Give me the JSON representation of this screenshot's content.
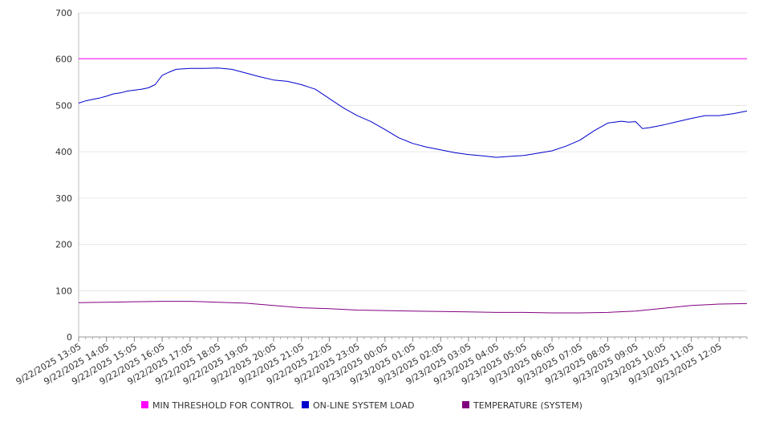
{
  "chart_data": {
    "type": "line",
    "title": "",
    "xlabel": "",
    "ylabel": "",
    "ylim": [
      0,
      700
    ],
    "yticks": [
      0,
      100,
      200,
      300,
      400,
      500,
      600,
      700
    ],
    "grid": true,
    "legend_position": "bottom",
    "x_tick_labels": [
      "9/22/2025 13:05",
      "9/22/2025 14:05",
      "9/22/2025 15:05",
      "9/22/2025 16:05",
      "9/22/2025 17:05",
      "9/22/2025 18:05",
      "9/22/2025 19:05",
      "9/22/2025 20:05",
      "9/22/2025 21:05",
      "9/22/2025 22:05",
      "9/22/2025 23:05",
      "9/23/2025 00:05",
      "9/23/2025 01:05",
      "9/23/2025 02:05",
      "9/23/2025 03:05",
      "9/23/2025 04:05",
      "9/23/2025 05:05",
      "9/23/2025 06:05",
      "9/23/2025 07:05",
      "9/23/2025 08:05",
      "9/23/2025 09:05",
      "9/23/2025 10:05",
      "9/23/2025 11:05",
      "9/23/2025 12:05"
    ],
    "x_range": [
      "9/22/2025 13:05",
      "9/23/2025 13:05"
    ],
    "series": [
      {
        "name": "MIN THRESHOLD FOR CONTROL",
        "color": "#ff00ff",
        "x": [
          "9/22/2025 13:05",
          "9/23/2025 13:05"
        ],
        "values": [
          601,
          601
        ]
      },
      {
        "name": "ON-LINE SYSTEM LOAD",
        "color": "#0000cc",
        "x": [
          "9/22/2025 13:05",
          "9/22/2025 13:20",
          "9/22/2025 13:35",
          "9/22/2025 13:50",
          "9/22/2025 14:05",
          "9/22/2025 14:20",
          "9/22/2025 14:35",
          "9/22/2025 14:50",
          "9/22/2025 15:05",
          "9/22/2025 15:20",
          "9/22/2025 15:35",
          "9/22/2025 15:50",
          "9/22/2025 16:05",
          "9/22/2025 16:20",
          "9/22/2025 16:35",
          "9/22/2025 17:05",
          "9/22/2025 17:35",
          "9/22/2025 18:05",
          "9/22/2025 18:35",
          "9/22/2025 19:05",
          "9/22/2025 19:35",
          "9/22/2025 20:05",
          "9/22/2025 20:35",
          "9/22/2025 21:05",
          "9/22/2025 21:35",
          "9/22/2025 22:05",
          "9/22/2025 22:35",
          "9/22/2025 23:05",
          "9/22/2025 23:35",
          "9/23/2025 00:05",
          "9/23/2025 00:35",
          "9/23/2025 01:05",
          "9/23/2025 01:35",
          "9/23/2025 02:05",
          "9/23/2025 02:35",
          "9/23/2025 03:05",
          "9/23/2025 03:35",
          "9/23/2025 04:05",
          "9/23/2025 04:35",
          "9/23/2025 05:05",
          "9/23/2025 05:35",
          "9/23/2025 06:05",
          "9/23/2025 06:35",
          "9/23/2025 07:05",
          "9/23/2025 07:35",
          "9/23/2025 08:05",
          "9/23/2025 08:35",
          "9/23/2025 08:50",
          "9/23/2025 09:05",
          "9/23/2025 09:20",
          "9/23/2025 09:35",
          "9/23/2025 10:05",
          "9/23/2025 10:35",
          "9/23/2025 11:05",
          "9/23/2025 11:35",
          "9/23/2025 12:05",
          "9/23/2025 12:35",
          "9/23/2025 13:05"
        ],
        "values": [
          505,
          510,
          513,
          516,
          520,
          525,
          527,
          531,
          533,
          535,
          538,
          545,
          565,
          572,
          578,
          580,
          580,
          581,
          578,
          570,
          562,
          555,
          552,
          545,
          535,
          515,
          495,
          478,
          465,
          448,
          430,
          418,
          410,
          404,
          398,
          394,
          391,
          388,
          390,
          392,
          397,
          402,
          412,
          425,
          445,
          462,
          466,
          464,
          465,
          450,
          452,
          458,
          465,
          472,
          478,
          478,
          482,
          488
        ]
      },
      {
        "name": "TEMPERATURE (SYSTEM)",
        "color": "#800080",
        "x": [
          "9/22/2025 13:05",
          "9/22/2025 14:05",
          "9/22/2025 15:05",
          "9/22/2025 16:05",
          "9/22/2025 17:05",
          "9/22/2025 18:05",
          "9/22/2025 19:05",
          "9/22/2025 20:05",
          "9/22/2025 21:05",
          "9/22/2025 22:05",
          "9/22/2025 23:05",
          "9/23/2025 00:05",
          "9/23/2025 01:05",
          "9/23/2025 02:05",
          "9/23/2025 03:05",
          "9/23/2025 04:05",
          "9/23/2025 05:05",
          "9/23/2025 06:05",
          "9/23/2025 07:05",
          "9/23/2025 08:05",
          "9/23/2025 09:05",
          "9/23/2025 10:05",
          "9/23/2025 11:05",
          "9/23/2025 12:05",
          "9/23/2025 13:05"
        ],
        "values": [
          74,
          75,
          76,
          77,
          77,
          75,
          73,
          68,
          63,
          61,
          58,
          57,
          56,
          55,
          54,
          53,
          53,
          52,
          52,
          53,
          56,
          62,
          68,
          71,
          72
        ]
      }
    ]
  }
}
